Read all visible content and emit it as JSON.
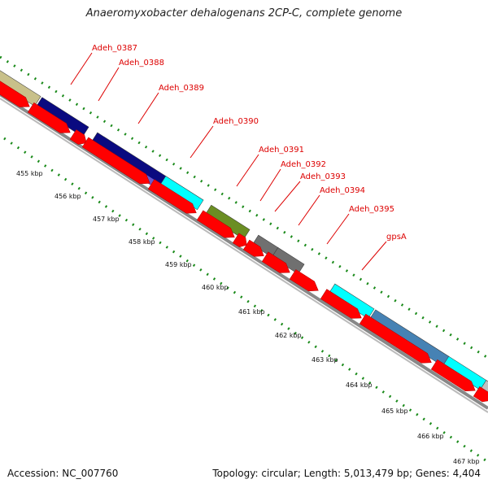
{
  "title": "Anaeromyxobacter dehalogenans 2CP-C, complete genome",
  "footer": {
    "accession": "Accession: NC_007760",
    "summary": "Topology: circular; Length: 5,013,479 bp; Genes: 4,404"
  },
  "colors": {
    "label": "#dd0000",
    "cds": "#ff0000",
    "ruler_dots": "#1a8a1a",
    "backbone": "#888888"
  },
  "gene_labels": [
    {
      "name": "Adeh_0387",
      "color": "#dd0000"
    },
    {
      "name": "Adeh_0388",
      "color": "#dd0000"
    },
    {
      "name": "Adeh_0389",
      "color": "#dd0000"
    },
    {
      "name": "Adeh_0390",
      "color": "#dd0000"
    },
    {
      "name": "Adeh_0391",
      "color": "#dd0000"
    },
    {
      "name": "Adeh_0392",
      "color": "#dd0000"
    },
    {
      "name": "Adeh_0393",
      "color": "#dd0000"
    },
    {
      "name": "Adeh_0394",
      "color": "#dd0000"
    },
    {
      "name": "Adeh_0395",
      "color": "#dd0000"
    },
    {
      "name": "gpsA",
      "color": "#dd0000"
    }
  ],
  "kbp_ticks": [
    "455 kbp",
    "456 kbp",
    "457 kbp",
    "458 kbp",
    "459 kbp",
    "460 kbp",
    "461 kbp",
    "462 kbp",
    "463 kbp",
    "464 kbp",
    "465 kbp",
    "466 kbp",
    "467 kbp"
  ],
  "feature_colors": {
    "khaki": "#c8c08a",
    "navy": "#0a0a80",
    "slate_blue": "#6a5acd",
    "cyan": "#00ffff",
    "olive": "#6b8e23",
    "gray": "#707070",
    "steel_blue": "#4682b4",
    "silver": "#c0c0c0"
  }
}
